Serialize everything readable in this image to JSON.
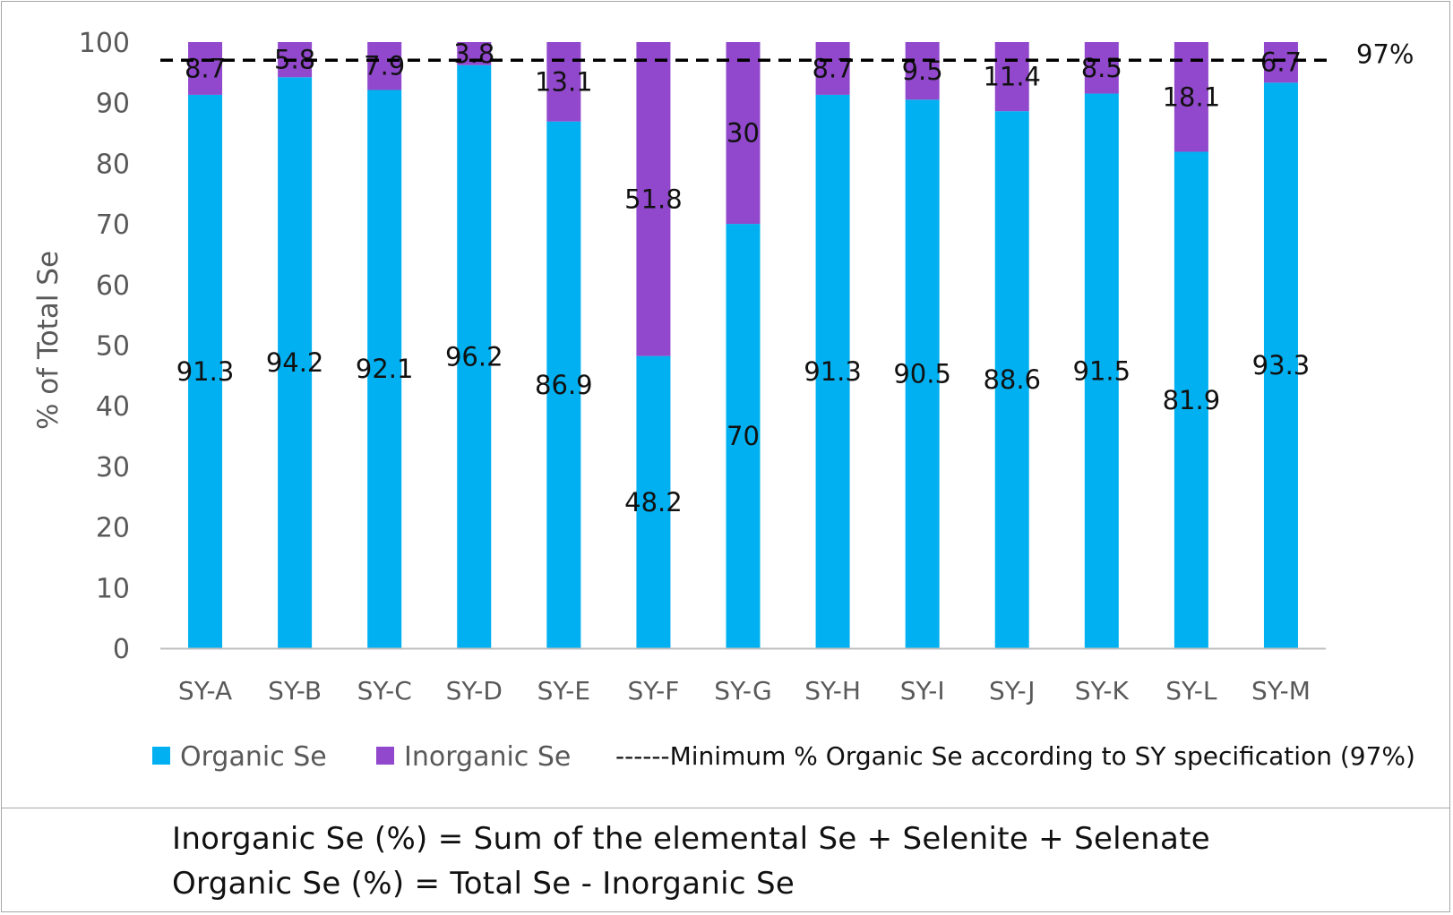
{
  "chart_data": {
    "type": "bar",
    "stacked": true,
    "categories": [
      "SY-A",
      "SY-B",
      "SY-C",
      "SY-D",
      "SY-E",
      "SY-F",
      "SY-G",
      "SY-H",
      "SY-I",
      "SY-J",
      "SY-K",
      "SY-L",
      "SY-M"
    ],
    "series": [
      {
        "name": "Organic Se",
        "color": "#00b0f0",
        "values": [
          91.3,
          94.2,
          92.1,
          96.2,
          86.9,
          48.2,
          70,
          91.3,
          90.5,
          88.6,
          91.5,
          81.9,
          93.3
        ]
      },
      {
        "name": "Inorganic Se",
        "color": "#9148cc",
        "values": [
          8.7,
          5.8,
          7.9,
          3.8,
          13.1,
          51.8,
          30,
          8.7,
          9.5,
          11.4,
          8.5,
          18.1,
          6.7
        ]
      }
    ],
    "ylabel": "% of Total Se",
    "xlabel": "",
    "ylim": [
      0,
      100
    ],
    "yticks": [
      0,
      10,
      20,
      30,
      40,
      50,
      60,
      70,
      80,
      90,
      100
    ],
    "grid": false,
    "legend_position": "bottom",
    "reference_line": {
      "value": 97,
      "label": "97%",
      "legend_label": "------Minimum % Organic Se according to SY specification (97%)",
      "style": "dashed"
    }
  },
  "notes": [
    "Inorganic Se (%) = Sum of the elemental Se + Selenite + Selenate",
    "Organic Se (%) = Total Se - Inorganic Se"
  ]
}
